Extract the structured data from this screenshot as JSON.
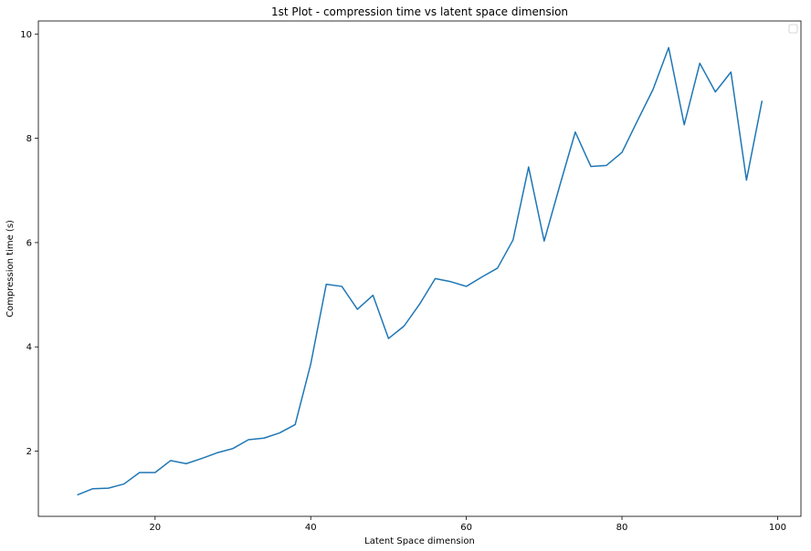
{
  "chart_data": {
    "type": "line",
    "title": "1st Plot - compression time vs latent space dimension",
    "xlabel": "Latent Space dimension",
    "ylabel": "Compression time (s)",
    "xlim": [
      5,
      103
    ],
    "ylim": [
      0.75,
      10.25
    ],
    "xticks": [
      20,
      40,
      60,
      80,
      100
    ],
    "yticks": [
      2,
      4,
      6,
      8,
      10
    ],
    "grid": false,
    "legend": "top-right (empty)",
    "line_color": "#1f77b4",
    "x": [
      10,
      12,
      14,
      16,
      18,
      20,
      22,
      24,
      26,
      28,
      30,
      32,
      34,
      36,
      38,
      40,
      42,
      44,
      46,
      48,
      50,
      52,
      54,
      56,
      58,
      60,
      62,
      64,
      66,
      68,
      70,
      72,
      74,
      76,
      78,
      80,
      82,
      84,
      86,
      88,
      90,
      92,
      94,
      96,
      98
    ],
    "series": [
      {
        "values": [
          1.16,
          1.28,
          1.29,
          1.37,
          1.59,
          1.59,
          1.82,
          1.76,
          1.86,
          1.97,
          2.05,
          2.22,
          2.25,
          2.35,
          2.51,
          3.67,
          5.2,
          5.16,
          4.72,
          4.99,
          4.16,
          4.4,
          4.82,
          5.31,
          5.25,
          5.16,
          5.34,
          5.51,
          6.05,
          7.45,
          6.03,
          7.09,
          8.12,
          7.46,
          7.48,
          7.73,
          8.34,
          8.94,
          9.74,
          8.26,
          9.44,
          8.89,
          9.27,
          7.2,
          8.72
        ]
      }
    ]
  }
}
